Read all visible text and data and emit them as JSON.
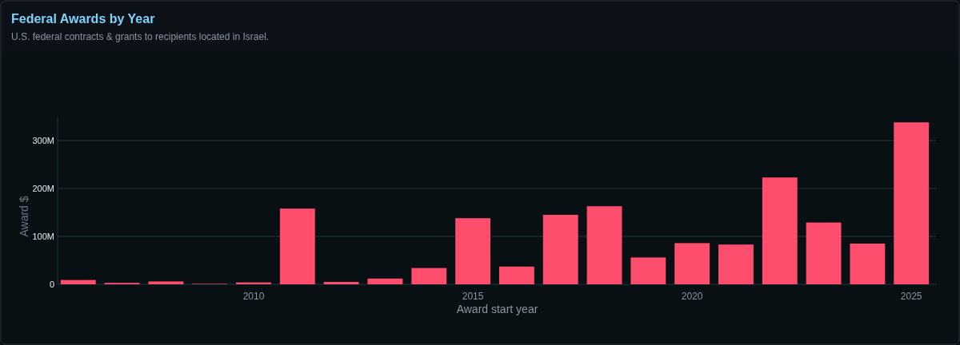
{
  "chart_data": {
    "type": "bar",
    "title": "Federal Awards by Year",
    "subtitle": "U.S. federal contracts & grants to recipients located in Israel.",
    "xlabel": "Award start year",
    "ylabel": "Award $",
    "x": [
      2006,
      2007,
      2008,
      2009,
      2010,
      2011,
      2012,
      2013,
      2014,
      2015,
      2016,
      2017,
      2018,
      2019,
      2020,
      2021,
      2022,
      2023,
      2024,
      2025
    ],
    "values": [
      9000000,
      3000000,
      6000000,
      1000000,
      4000000,
      158000000,
      5000000,
      12000000,
      34000000,
      138000000,
      37000000,
      145000000,
      163000000,
      56000000,
      86000000,
      83000000,
      223000000,
      129000000,
      85000000,
      338000000
    ],
    "color": "#ff4d6d",
    "xlim": [
      2005.53,
      2025.58
    ],
    "xticks": [
      2010,
      2015,
      2020,
      2025
    ],
    "ylim": [
      0,
      350000000
    ],
    "yticks": [
      {
        "value": 0,
        "label": "0"
      },
      {
        "value": 100000000,
        "label": "100M"
      },
      {
        "value": 200000000,
        "label": "200M"
      },
      {
        "value": 300000000,
        "label": "300M"
      }
    ],
    "grid": "y"
  }
}
